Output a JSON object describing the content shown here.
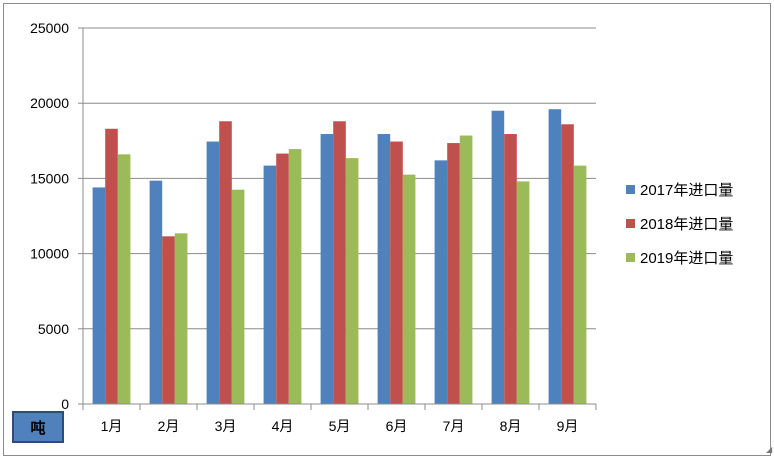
{
  "chart_data": {
    "type": "bar",
    "categories": [
      "1月",
      "2月",
      "3月",
      "4月",
      "5月",
      "6月",
      "7月",
      "8月",
      "9月"
    ],
    "series": [
      {
        "name": "2017年进口量",
        "color": "#4f81bd",
        "values": [
          14400,
          14850,
          17450,
          15850,
          17950,
          17950,
          16200,
          19500,
          19600
        ]
      },
      {
        "name": "2018年进口量",
        "color": "#c0504d",
        "values": [
          18300,
          11150,
          18800,
          16650,
          18800,
          17450,
          17350,
          17950,
          18600
        ]
      },
      {
        "name": "2019年进口量",
        "color": "#9bbb59",
        "values": [
          16600,
          11350,
          14250,
          16950,
          16350,
          15250,
          17850,
          14800,
          15850
        ]
      }
    ],
    "yticks": [
      "0",
      "5000",
      "10000",
      "15000",
      "20000",
      "25000"
    ],
    "ylim": [
      0,
      25000
    ],
    "grid": true,
    "legend_position": "right",
    "unit_label": "吨"
  }
}
